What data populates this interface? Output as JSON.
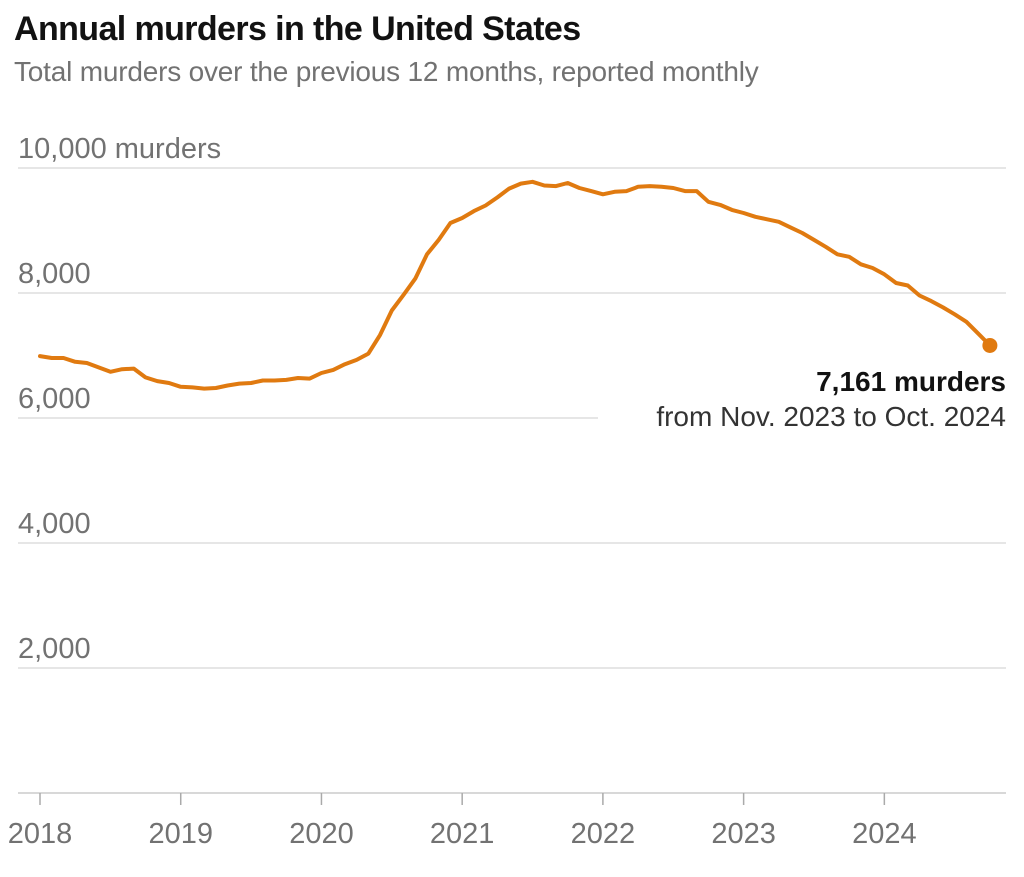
{
  "title": "Annual murders in the United States",
  "subtitle": "Total murders over the previous 12 months, reported monthly",
  "chart_data": {
    "type": "line",
    "title": "Annual murders in the United States",
    "subtitle": "Total murders over the previous 12 months, reported monthly",
    "ylim": [
      0,
      10000
    ],
    "xlim": [
      2018.0,
      2024.9
    ],
    "y_ticks": [
      {
        "value": 10000,
        "label": "10,000 murders"
      },
      {
        "value": 8000,
        "label": "8,000"
      },
      {
        "value": 6000,
        "label": "6,000"
      },
      {
        "value": 4000,
        "label": "4,000"
      },
      {
        "value": 2000,
        "label": "2,000"
      }
    ],
    "x_ticks": [
      {
        "value": 2018,
        "label": "2018"
      },
      {
        "value": 2019,
        "label": "2019"
      },
      {
        "value": 2020,
        "label": "2020"
      },
      {
        "value": 2021,
        "label": "2021"
      },
      {
        "value": 2022,
        "label": "2022"
      },
      {
        "value": 2023,
        "label": "2023"
      },
      {
        "value": 2024,
        "label": "2024"
      }
    ],
    "grid": true,
    "line_color": "#e07a10",
    "grid_color": "#dddddd",
    "series": [
      {
        "points": [
          [
            "2018-01",
            6990
          ],
          [
            "2018-02",
            6960
          ],
          [
            "2018-03",
            6960
          ],
          [
            "2018-04",
            6900
          ],
          [
            "2018-05",
            6880
          ],
          [
            "2018-06",
            6810
          ],
          [
            "2018-07",
            6740
          ],
          [
            "2018-08",
            6780
          ],
          [
            "2018-09",
            6790
          ],
          [
            "2018-10",
            6650
          ],
          [
            "2018-11",
            6590
          ],
          [
            "2018-12",
            6560
          ],
          [
            "2019-01",
            6500
          ],
          [
            "2019-02",
            6490
          ],
          [
            "2019-03",
            6470
          ],
          [
            "2019-04",
            6480
          ],
          [
            "2019-05",
            6520
          ],
          [
            "2019-06",
            6550
          ],
          [
            "2019-07",
            6560
          ],
          [
            "2019-08",
            6600
          ],
          [
            "2019-09",
            6600
          ],
          [
            "2019-10",
            6610
          ],
          [
            "2019-11",
            6640
          ],
          [
            "2019-12",
            6630
          ],
          [
            "2020-01",
            6720
          ],
          [
            "2020-02",
            6770
          ],
          [
            "2020-03",
            6860
          ],
          [
            "2020-04",
            6930
          ],
          [
            "2020-05",
            7030
          ],
          [
            "2020-06",
            7330
          ],
          [
            "2020-07",
            7720
          ],
          [
            "2020-08",
            7970
          ],
          [
            "2020-09",
            8230
          ],
          [
            "2020-10",
            8620
          ],
          [
            "2020-11",
            8850
          ],
          [
            "2020-12",
            9120
          ],
          [
            "2021-01",
            9200
          ],
          [
            "2021-02",
            9310
          ],
          [
            "2021-03",
            9400
          ],
          [
            "2021-04",
            9530
          ],
          [
            "2021-05",
            9670
          ],
          [
            "2021-06",
            9750
          ],
          [
            "2021-07",
            9780
          ],
          [
            "2021-08",
            9720
          ],
          [
            "2021-09",
            9710
          ],
          [
            "2021-10",
            9760
          ],
          [
            "2021-11",
            9680
          ],
          [
            "2021-12",
            9630
          ],
          [
            "2022-01",
            9580
          ],
          [
            "2022-02",
            9620
          ],
          [
            "2022-03",
            9630
          ],
          [
            "2022-04",
            9700
          ],
          [
            "2022-05",
            9710
          ],
          [
            "2022-06",
            9700
          ],
          [
            "2022-07",
            9680
          ],
          [
            "2022-08",
            9630
          ],
          [
            "2022-09",
            9630
          ],
          [
            "2022-10",
            9460
          ],
          [
            "2022-11",
            9410
          ],
          [
            "2022-12",
            9330
          ],
          [
            "2023-01",
            9280
          ],
          [
            "2023-02",
            9220
          ],
          [
            "2023-03",
            9180
          ],
          [
            "2023-04",
            9140
          ],
          [
            "2023-05",
            9050
          ],
          [
            "2023-06",
            8960
          ],
          [
            "2023-07",
            8850
          ],
          [
            "2023-08",
            8740
          ],
          [
            "2023-09",
            8620
          ],
          [
            "2023-10",
            8580
          ],
          [
            "2023-11",
            8460
          ],
          [
            "2023-12",
            8400
          ],
          [
            "2024-01",
            8300
          ],
          [
            "2024-02",
            8160
          ],
          [
            "2024-03",
            8120
          ],
          [
            "2024-04",
            7960
          ],
          [
            "2024-05",
            7870
          ],
          [
            "2024-06",
            7770
          ],
          [
            "2024-07",
            7660
          ],
          [
            "2024-08",
            7540
          ],
          [
            "2024-09",
            7350
          ],
          [
            "2024-10",
            7161
          ]
        ]
      }
    ],
    "annotation": {
      "value_label": "7,161 murders",
      "range_label": "from Nov. 2023 to Oct. 2024"
    }
  }
}
